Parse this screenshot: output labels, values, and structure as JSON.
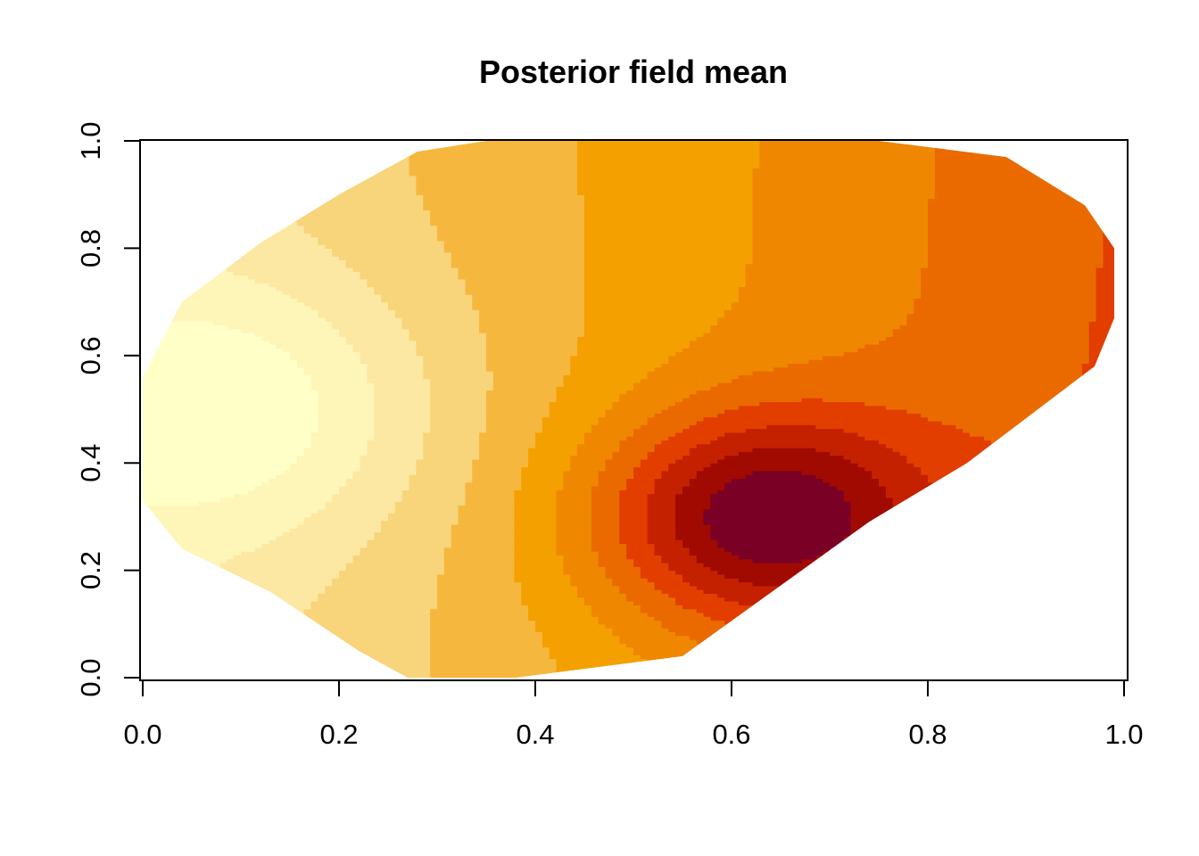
{
  "chart_data": {
    "type": "heatmap",
    "title": "Posterior field mean",
    "xlabel": "",
    "ylabel": "",
    "xlim": [
      0.0,
      1.0
    ],
    "ylim": [
      0.0,
      1.0
    ],
    "grid": false,
    "legend": "none",
    "x_ticks": [
      "0.0",
      "0.2",
      "0.4",
      "0.6",
      "0.8",
      "1.0"
    ],
    "y_ticks": [
      "0.0",
      "0.2",
      "0.4",
      "0.6",
      "0.8",
      "1.0"
    ],
    "color_scale": [
      "#FFFFC8",
      "#FEF5B8",
      "#FCE8A2",
      "#F8D47A",
      "#F6B73E",
      "#F3A000",
      "#F08700",
      "#EA6A00",
      "#E23E00",
      "#C42100",
      "#A10A00",
      "#7A0026"
    ],
    "field_domain": [
      [
        0.27,
        0.0
      ],
      [
        0.38,
        0.0
      ],
      [
        0.55,
        0.04
      ],
      [
        0.74,
        0.29
      ],
      [
        0.84,
        0.4
      ],
      [
        0.97,
        0.58
      ],
      [
        0.99,
        0.67
      ],
      [
        0.99,
        0.8
      ],
      [
        0.96,
        0.88
      ],
      [
        0.88,
        0.97
      ],
      [
        0.75,
        1.0
      ],
      [
        0.35,
        1.0
      ],
      [
        0.28,
        0.98
      ],
      [
        0.2,
        0.9
      ],
      [
        0.12,
        0.81
      ],
      [
        0.04,
        0.7
      ],
      [
        0.0,
        0.56
      ],
      [
        0.0,
        0.33
      ],
      [
        0.04,
        0.24
      ],
      [
        0.13,
        0.16
      ],
      [
        0.22,
        0.05
      ]
    ],
    "field_extremes": {
      "low": {
        "x": 0.1,
        "y": 0.5
      },
      "high": {
        "x": 0.63,
        "y": 0.3
      }
    }
  }
}
